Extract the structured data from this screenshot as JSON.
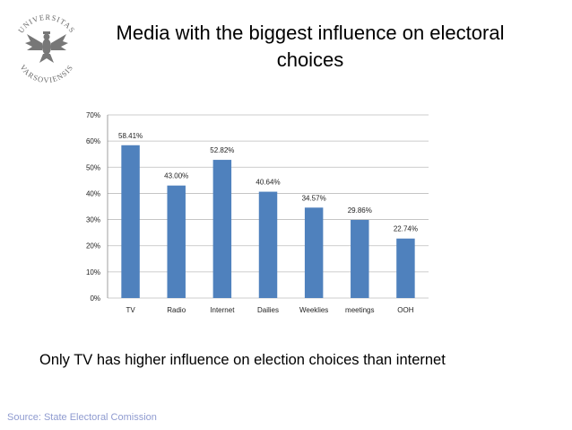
{
  "slide": {
    "title": "Media with the biggest influence on electoral choices",
    "caption": "Only TV has higher influence on election choices than internet",
    "source": "Source: State Electoral Comission",
    "logo_text_top": "UNIVERSITAS",
    "logo_text_bottom": "VARSOVIENSIS"
  },
  "chart_data": {
    "type": "bar",
    "title": "",
    "xlabel": "",
    "ylabel": "",
    "categories": [
      "TV",
      "Radio",
      "Internet",
      "Dailies",
      "Weeklies",
      "meetings",
      "OOH"
    ],
    "values": [
      58.41,
      43.0,
      52.82,
      40.64,
      34.57,
      29.86,
      22.74
    ],
    "data_labels": [
      "58.41%",
      "43.00%",
      "52.82%",
      "40.64%",
      "34.57%",
      "29.86%",
      "22.74%"
    ],
    "yticks": [
      "0%",
      "10%",
      "20%",
      "30%",
      "40%",
      "50%",
      "60%",
      "70%"
    ],
    "ylim": [
      0,
      70
    ],
    "grid": true,
    "legend": "none",
    "bar_color": "#4f81bd",
    "grid_color": "#bdbdbd"
  }
}
